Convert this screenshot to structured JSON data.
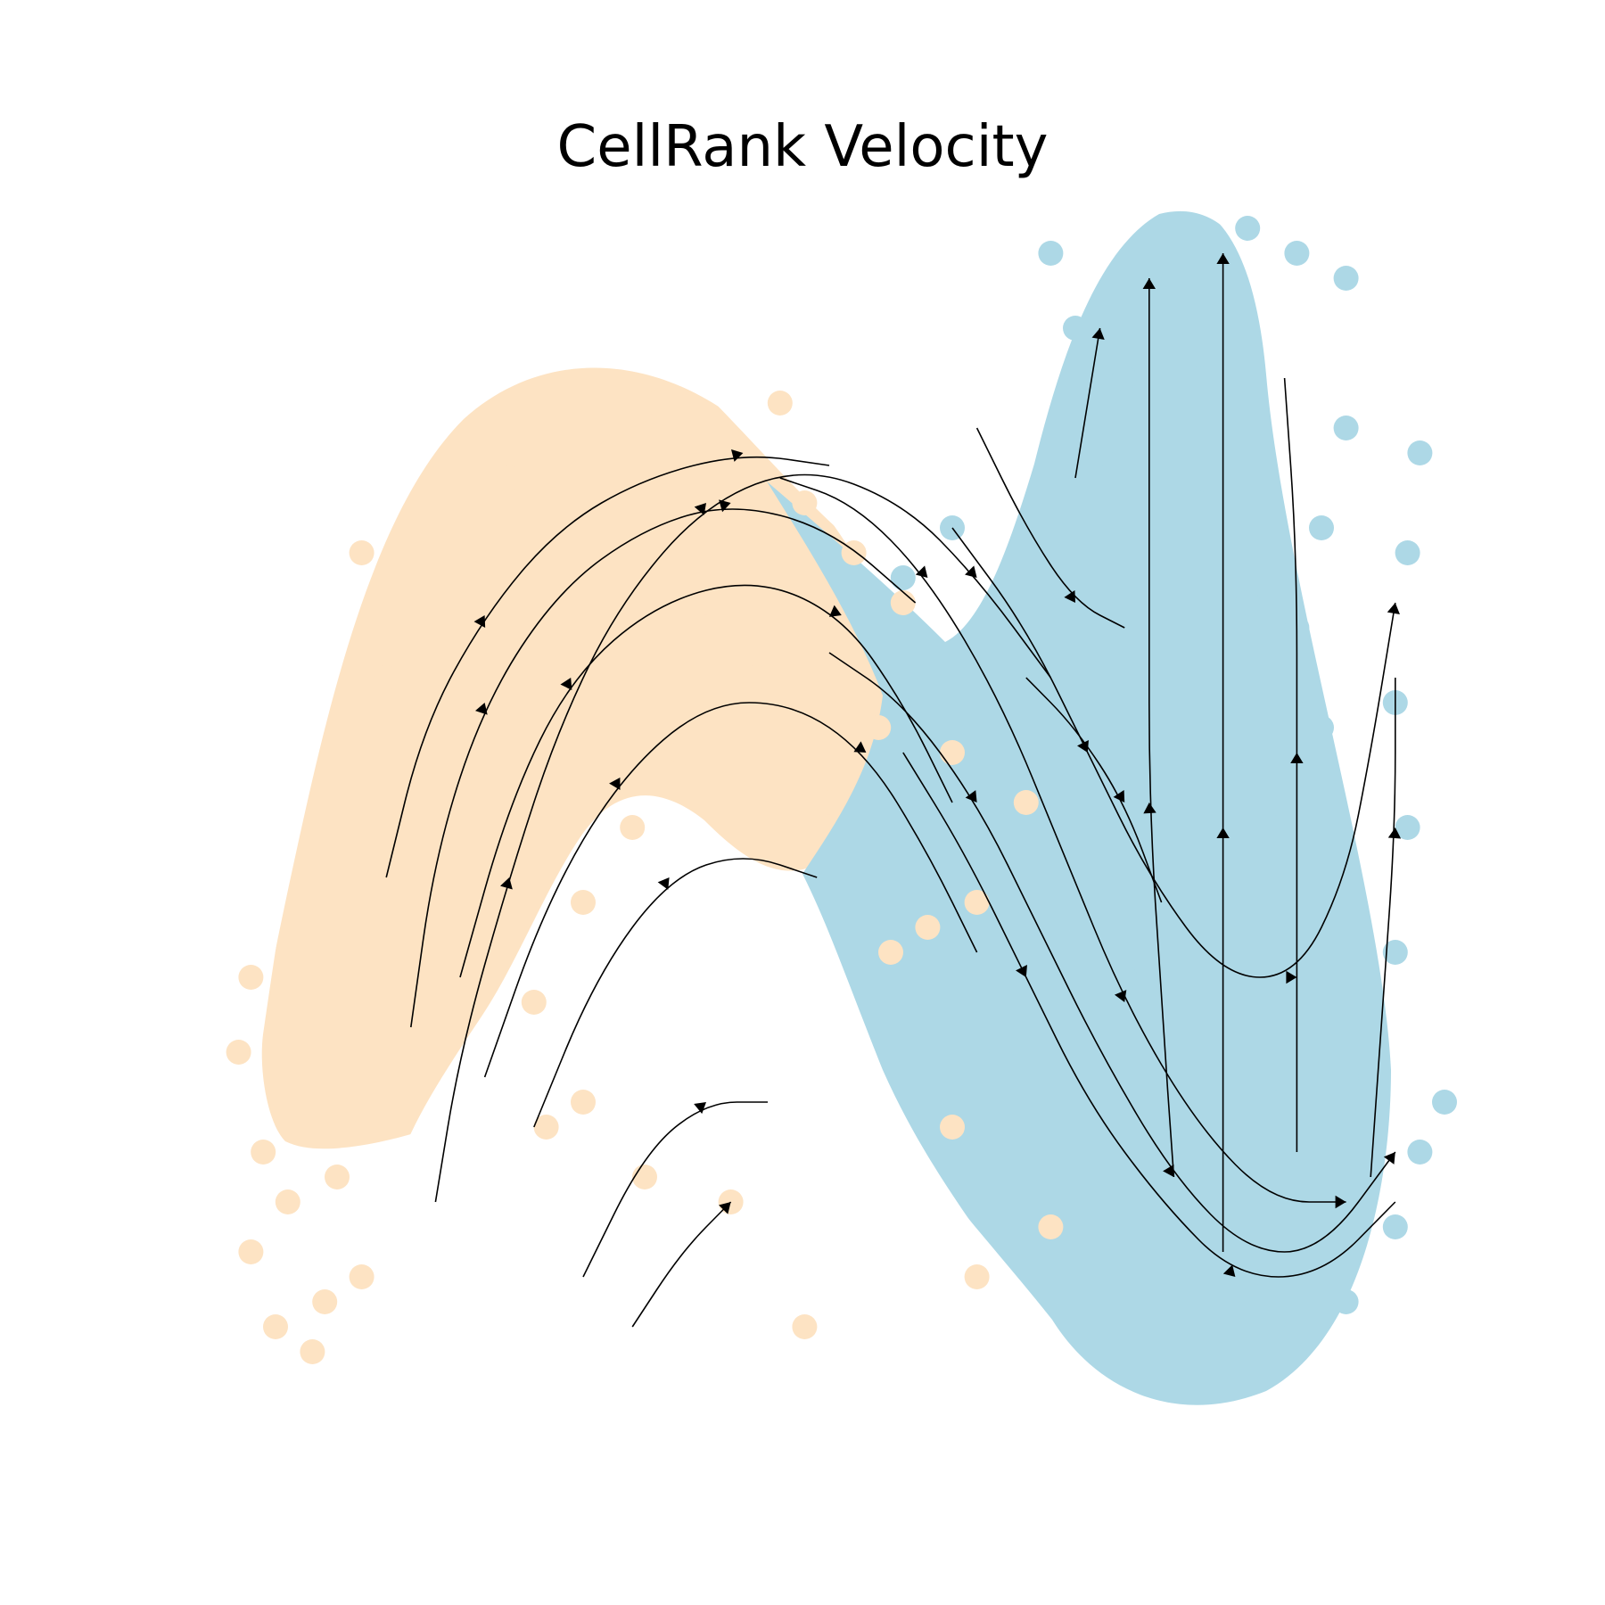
{
  "chart_data": {
    "type": "scatter",
    "title": "CellRank Velocity",
    "xlabel": "",
    "ylabel": "",
    "axes_visible": false,
    "grid": false,
    "legend": "none",
    "xlim": [
      0,
      100
    ],
    "ylim": [
      0,
      100
    ],
    "colors": {
      "orange_cells": "#fde3c3",
      "blue_cells": "#add8e6",
      "streamlines": "#000000"
    },
    "streamlines": [
      {
        "points": [
          [
            18,
            18
          ],
          [
            20,
            30
          ],
          [
            24,
            44
          ],
          [
            28,
            56
          ],
          [
            33,
            66
          ],
          [
            40,
            74
          ],
          [
            48,
            77
          ],
          [
            56,
            74
          ],
          [
            62,
            68
          ],
          [
            68,
            60
          ]
        ]
      },
      {
        "points": [
          [
            16,
            32
          ],
          [
            18,
            46
          ],
          [
            22,
            58
          ],
          [
            28,
            67
          ],
          [
            35,
            72
          ],
          [
            42,
            74
          ],
          [
            50,
            72
          ],
          [
            57,
            66
          ]
        ]
      },
      {
        "points": [
          [
            14,
            44
          ],
          [
            17,
            56
          ],
          [
            22,
            65
          ],
          [
            28,
            72
          ],
          [
            35,
            76
          ],
          [
            43,
            78
          ],
          [
            50,
            77
          ]
        ]
      },
      {
        "points": [
          [
            20,
            36
          ],
          [
            24,
            50
          ],
          [
            29,
            60
          ],
          [
            36,
            66
          ],
          [
            44,
            68
          ],
          [
            51,
            65
          ],
          [
            56,
            58
          ],
          [
            60,
            50
          ]
        ]
      },
      {
        "points": [
          [
            22,
            28
          ],
          [
            27,
            42
          ],
          [
            33,
            52
          ],
          [
            40,
            58
          ],
          [
            47,
            58
          ],
          [
            53,
            54
          ],
          [
            58,
            46
          ],
          [
            62,
            38
          ]
        ]
      },
      {
        "points": [
          [
            26,
            24
          ],
          [
            31,
            36
          ],
          [
            37,
            44
          ],
          [
            43,
            46
          ],
          [
            49,
            44
          ]
        ]
      },
      {
        "points": [
          [
            30,
            12
          ],
          [
            35,
            22
          ],
          [
            40,
            26
          ],
          [
            45,
            26
          ]
        ]
      },
      {
        "points": [
          [
            34,
            8
          ],
          [
            38,
            14
          ],
          [
            42,
            18
          ]
        ]
      },
      {
        "points": [
          [
            46,
            76
          ],
          [
            52,
            74
          ],
          [
            58,
            68
          ],
          [
            64,
            58
          ],
          [
            69,
            46
          ],
          [
            74,
            34
          ],
          [
            80,
            24
          ],
          [
            86,
            18
          ],
          [
            92,
            18
          ]
        ]
      },
      {
        "points": [
          [
            50,
            62
          ],
          [
            56,
            58
          ],
          [
            62,
            50
          ],
          [
            67,
            40
          ],
          [
            72,
            30
          ],
          [
            78,
            20
          ],
          [
            84,
            14
          ],
          [
            90,
            14
          ],
          [
            96,
            22
          ]
        ]
      },
      {
        "points": [
          [
            56,
            54
          ],
          [
            61,
            46
          ],
          [
            66,
            36
          ],
          [
            71,
            26
          ],
          [
            77,
            18
          ],
          [
            83,
            12
          ],
          [
            90,
            12
          ],
          [
            96,
            18
          ]
        ]
      },
      {
        "points": [
          [
            60,
            72
          ],
          [
            66,
            64
          ],
          [
            71,
            54
          ],
          [
            76,
            44
          ],
          [
            82,
            36
          ],
          [
            88,
            36
          ],
          [
            92,
            44
          ],
          [
            94,
            54
          ],
          [
            96,
            66
          ]
        ]
      },
      {
        "points": [
          [
            62,
            80
          ],
          [
            66,
            72
          ],
          [
            70,
            66
          ],
          [
            74,
            64
          ]
        ]
      },
      {
        "points": [
          [
            78,
            20
          ],
          [
            77,
            34
          ],
          [
            76,
            50
          ],
          [
            76,
            66
          ],
          [
            76,
            80
          ],
          [
            76,
            92
          ]
        ]
      },
      {
        "points": [
          [
            82,
            14
          ],
          [
            82,
            30
          ],
          [
            82,
            48
          ],
          [
            82,
            64
          ],
          [
            82,
            80
          ],
          [
            82,
            94
          ]
        ]
      },
      {
        "points": [
          [
            88,
            22
          ],
          [
            88,
            38
          ],
          [
            88,
            54
          ],
          [
            88,
            70
          ],
          [
            87,
            84
          ]
        ]
      },
      {
        "points": [
          [
            94,
            20
          ],
          [
            95,
            34
          ],
          [
            96,
            48
          ],
          [
            96,
            60
          ]
        ]
      },
      {
        "points": [
          [
            70,
            76
          ],
          [
            71,
            82
          ],
          [
            72,
            88
          ]
        ]
      },
      {
        "points": [
          [
            66,
            60
          ],
          [
            70,
            56
          ],
          [
            74,
            50
          ],
          [
            77,
            42
          ]
        ]
      }
    ],
    "series": [
      {
        "color": "#fde3c3",
        "points": [
          [
            3,
            14
          ],
          [
            5,
            8
          ],
          [
            8,
            6
          ],
          [
            9,
            10
          ],
          [
            12,
            12
          ],
          [
            4,
            22
          ],
          [
            6,
            18
          ],
          [
            10,
            20
          ],
          [
            2,
            30
          ],
          [
            3,
            36
          ],
          [
            18,
            44
          ],
          [
            22,
            40
          ],
          [
            20,
            52
          ],
          [
            25,
            58
          ],
          [
            28,
            64
          ],
          [
            32,
            70
          ],
          [
            36,
            74
          ],
          [
            42,
            78
          ],
          [
            46,
            82
          ],
          [
            48,
            74
          ],
          [
            40,
            66
          ],
          [
            44,
            60
          ],
          [
            38,
            54
          ],
          [
            34,
            48
          ],
          [
            30,
            42
          ],
          [
            26,
            34
          ],
          [
            52,
            70
          ],
          [
            56,
            66
          ],
          [
            54,
            56
          ],
          [
            50,
            50
          ],
          [
            60,
            54
          ],
          [
            62,
            42
          ],
          [
            66,
            50
          ],
          [
            58,
            40
          ],
          [
            27,
            24
          ],
          [
            30,
            26
          ],
          [
            35,
            20
          ],
          [
            42,
            18
          ],
          [
            48,
            8
          ],
          [
            60,
            24
          ],
          [
            62,
            12
          ],
          [
            68,
            16
          ],
          [
            24,
            76
          ],
          [
            36,
            82
          ],
          [
            14,
            60
          ],
          [
            12,
            70
          ],
          [
            55,
            38
          ],
          [
            46,
            46
          ]
        ]
      },
      {
        "color": "#add8e6",
        "points": [
          [
            56,
            68
          ],
          [
            60,
            72
          ],
          [
            64,
            66
          ],
          [
            68,
            60
          ],
          [
            70,
            52
          ],
          [
            72,
            44
          ],
          [
            74,
            36
          ],
          [
            78,
            28
          ],
          [
            80,
            20
          ],
          [
            84,
            12
          ],
          [
            88,
            8
          ],
          [
            92,
            10
          ],
          [
            96,
            16
          ],
          [
            98,
            22
          ],
          [
            90,
            20
          ],
          [
            86,
            26
          ],
          [
            76,
            16
          ],
          [
            82,
            18
          ],
          [
            94,
            28
          ],
          [
            96,
            38
          ],
          [
            97,
            48
          ],
          [
            96,
            58
          ],
          [
            97,
            70
          ],
          [
            98,
            78
          ],
          [
            92,
            80
          ],
          [
            90,
            72
          ],
          [
            88,
            64
          ],
          [
            90,
            56
          ],
          [
            86,
            48
          ],
          [
            88,
            40
          ],
          [
            82,
            46
          ],
          [
            80,
            58
          ],
          [
            84,
            66
          ],
          [
            80,
            74
          ],
          [
            80,
            84
          ],
          [
            82,
            90
          ],
          [
            84,
            96
          ],
          [
            88,
            94
          ],
          [
            92,
            92
          ],
          [
            78,
            92
          ],
          [
            74,
            84
          ],
          [
            72,
            78
          ],
          [
            70,
            88
          ],
          [
            68,
            94
          ],
          [
            76,
            70
          ],
          [
            66,
            42
          ],
          [
            64,
            30
          ],
          [
            62,
            56
          ],
          [
            58,
            62
          ],
          [
            100,
            26
          ]
        ]
      }
    ]
  }
}
